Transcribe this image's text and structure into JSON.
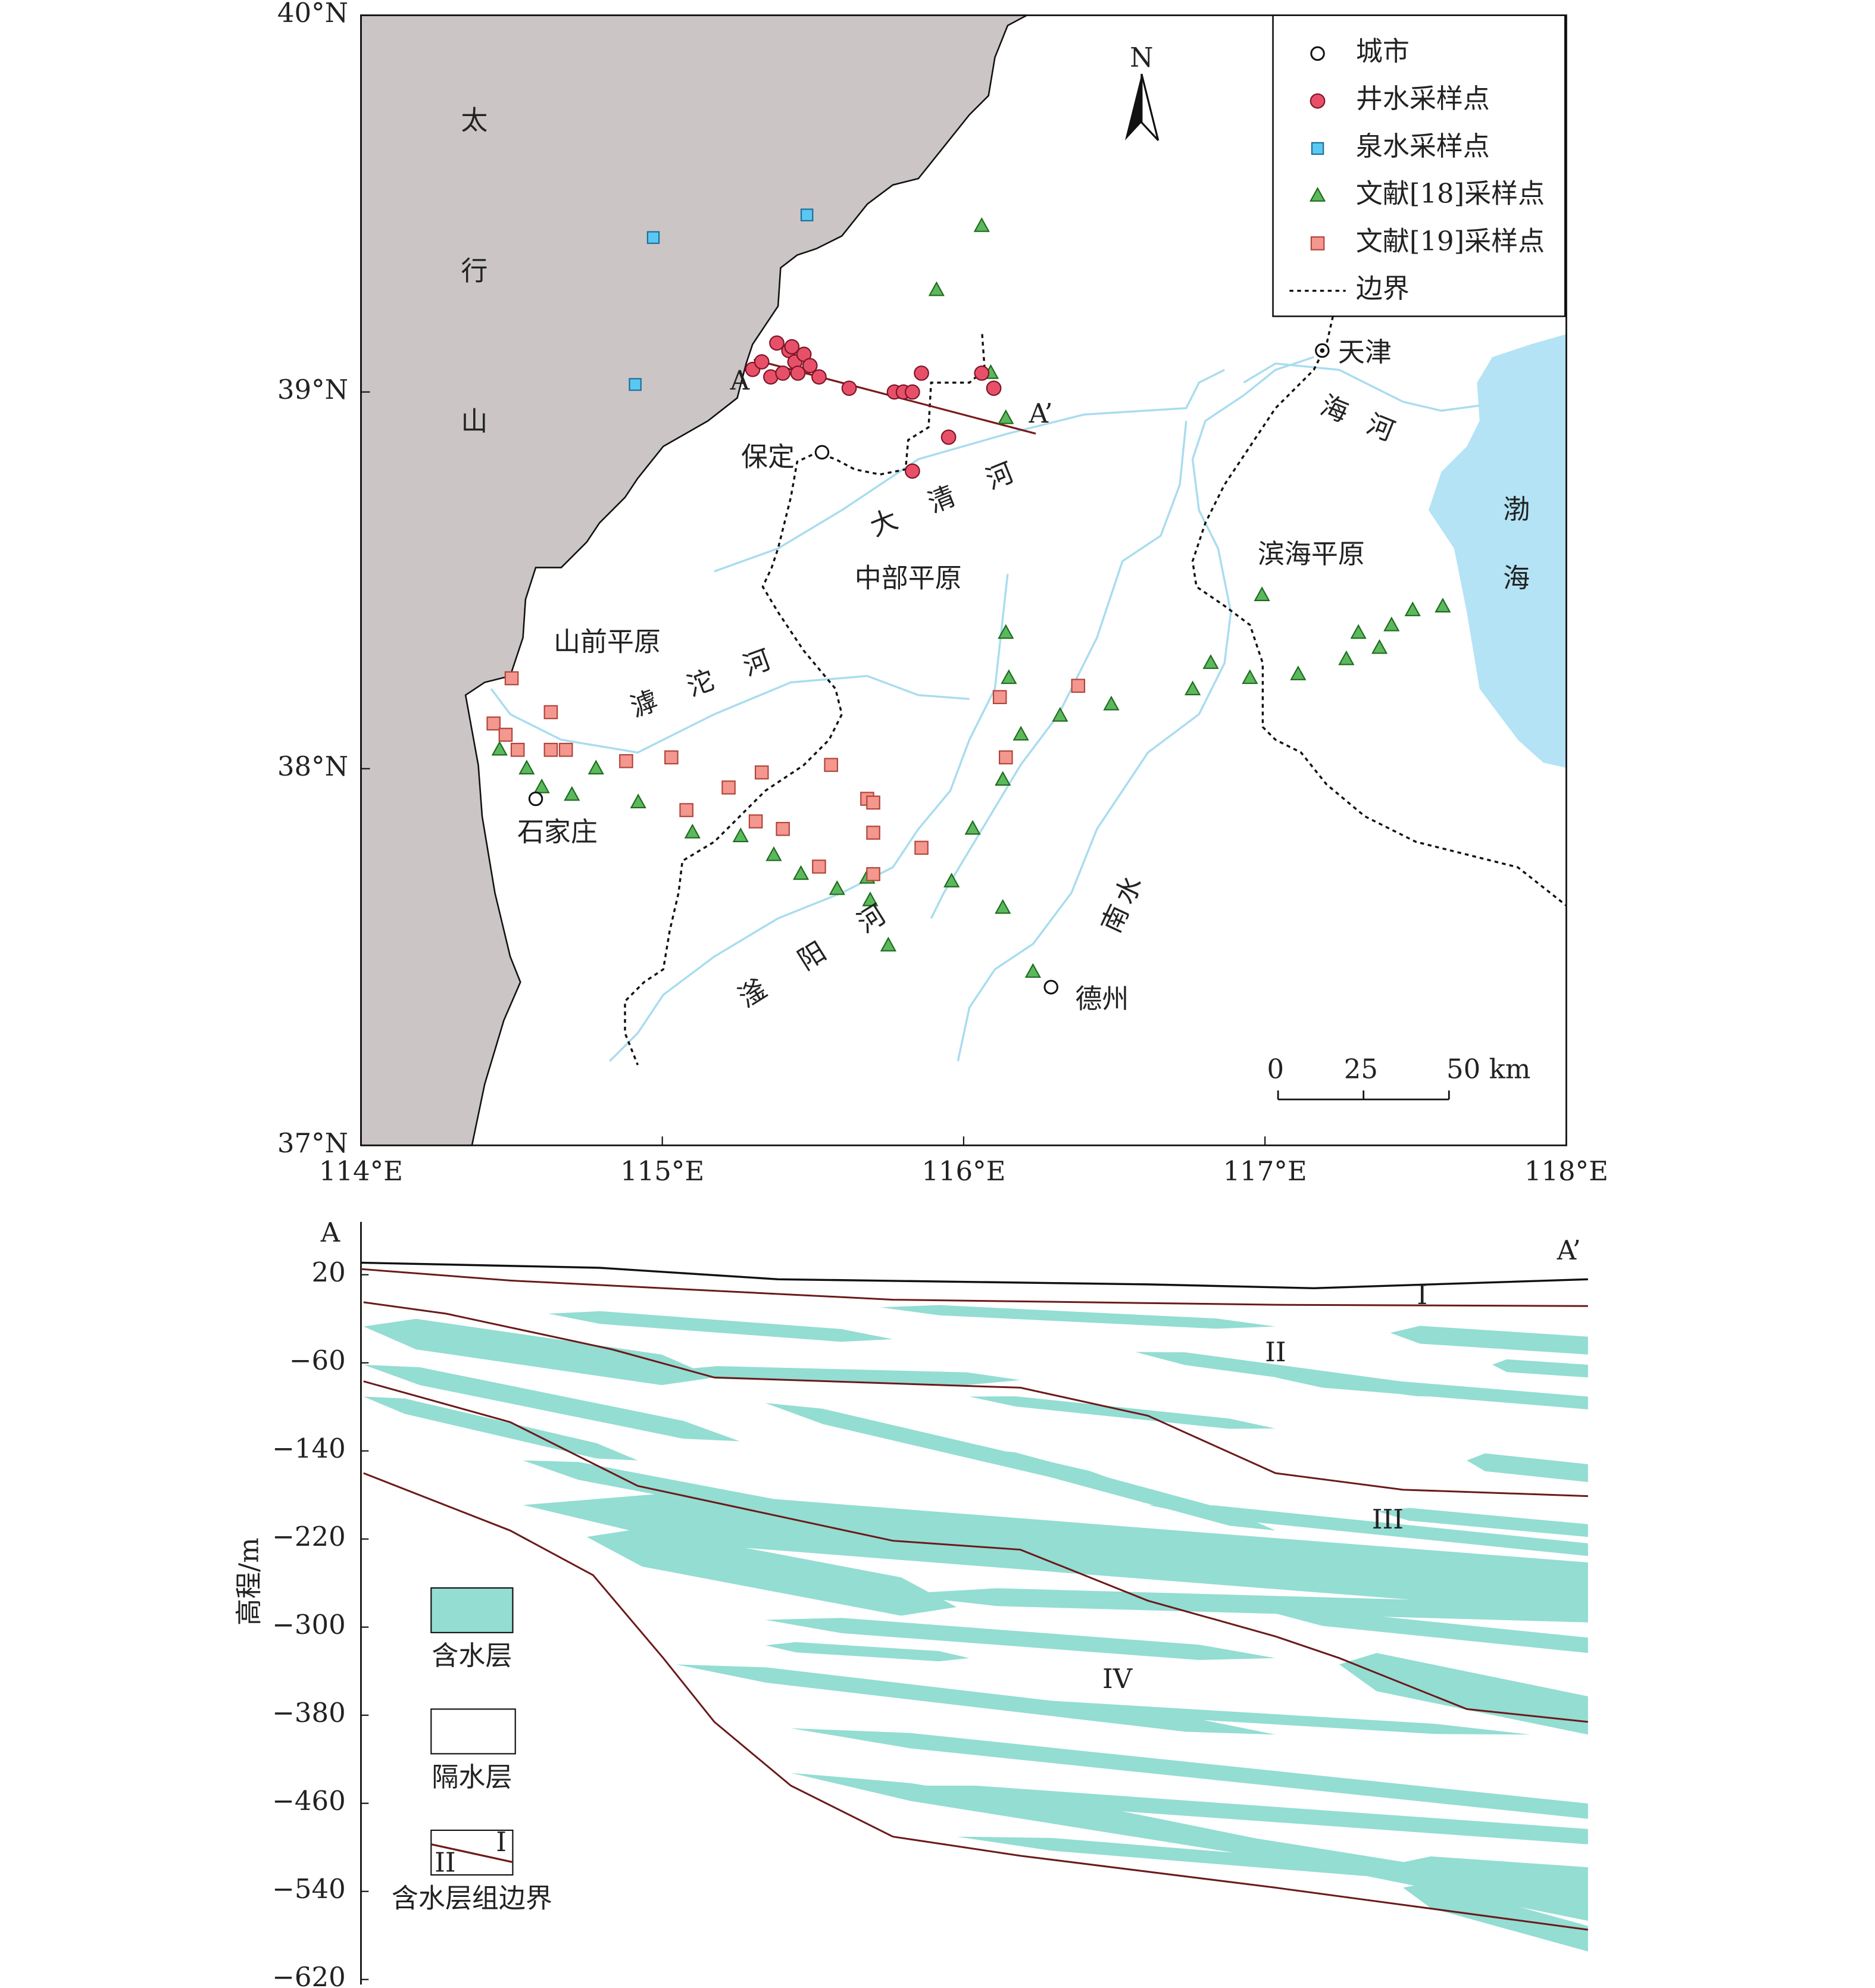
{
  "map": {
    "xlim": [
      114,
      118
    ],
    "ylim": [
      37,
      40
    ],
    "xticks": [
      {
        "value": 114,
        "label": "114°E"
      },
      {
        "value": 115,
        "label": "115°E"
      },
      {
        "value": 116,
        "label": "116°E"
      },
      {
        "value": 117,
        "label": "117°E"
      },
      {
        "value": 118,
        "label": "118°E"
      }
    ],
    "yticks": [
      {
        "value": 37,
        "label": "37°N"
      },
      {
        "value": 38,
        "label": "38°N"
      },
      {
        "value": 39,
        "label": "39°N"
      },
      {
        "value": 40,
        "label": "40°N"
      }
    ],
    "north": "N",
    "legend": [
      "城市",
      "井水采样点",
      "泉水采样点",
      "文献[18]采样点",
      "文献[19]采样点",
      "边界"
    ],
    "cities": [
      {
        "name": "保定",
        "lon": 115.53,
        "lat": 38.84
      },
      {
        "name": "石家庄",
        "lon": 114.58,
        "lat": 37.92
      },
      {
        "name": "德州",
        "lon": 116.29,
        "lat": 37.42
      },
      {
        "name": "天津",
        "lon": 117.19,
        "lat": 39.11
      }
    ],
    "wells": {
      "color": "#e8506a",
      "points": [
        [
          115.3,
          39.06
        ],
        [
          115.33,
          39.08
        ],
        [
          115.36,
          39.04
        ],
        [
          115.38,
          39.13
        ],
        [
          115.4,
          39.05
        ],
        [
          115.42,
          39.11
        ],
        [
          115.43,
          39.12
        ],
        [
          115.44,
          39.08
        ],
        [
          115.45,
          39.05
        ],
        [
          115.47,
          39.1
        ],
        [
          115.49,
          39.07
        ],
        [
          115.52,
          39.04
        ],
        [
          115.62,
          39.01
        ],
        [
          115.77,
          39.0
        ],
        [
          115.8,
          39.0
        ],
        [
          115.83,
          39.0
        ],
        [
          115.86,
          39.05
        ],
        [
          116.06,
          39.05
        ],
        [
          116.1,
          39.01
        ],
        [
          115.95,
          38.88
        ],
        [
          115.83,
          38.79
        ]
      ]
    },
    "springs": {
      "color": "#5bc8f2",
      "points": [
        [
          114.97,
          39.41
        ],
        [
          115.48,
          39.47
        ],
        [
          114.91,
          39.02
        ]
      ]
    },
    "ref18": {
      "color": "#5cb85c",
      "points": [
        [
          116.06,
          39.44
        ],
        [
          115.91,
          39.27
        ],
        [
          116.09,
          39.05
        ],
        [
          116.14,
          38.93
        ],
        [
          116.14,
          38.36
        ],
        [
          116.15,
          38.24
        ],
        [
          116.19,
          38.09
        ],
        [
          116.13,
          37.97
        ],
        [
          116.32,
          38.14
        ],
        [
          116.49,
          38.17
        ],
        [
          116.82,
          38.28
        ],
        [
          116.76,
          38.21
        ],
        [
          116.95,
          38.24
        ],
        [
          116.99,
          38.46
        ],
        [
          117.11,
          38.25
        ],
        [
          117.27,
          38.29
        ],
        [
          117.31,
          38.36
        ],
        [
          117.38,
          38.32
        ],
        [
          117.42,
          38.38
        ],
        [
          117.49,
          38.42
        ],
        [
          117.59,
          38.43
        ],
        [
          114.46,
          38.05
        ],
        [
          114.55,
          38.0
        ],
        [
          114.6,
          37.95
        ],
        [
          114.7,
          37.93
        ],
        [
          114.78,
          38.0
        ],
        [
          114.92,
          37.91
        ],
        [
          115.1,
          37.83
        ],
        [
          115.26,
          37.82
        ],
        [
          115.37,
          37.77
        ],
        [
          115.46,
          37.72
        ],
        [
          115.58,
          37.68
        ],
        [
          115.68,
          37.71
        ],
        [
          115.69,
          37.65
        ],
        [
          115.75,
          37.53
        ],
        [
          115.96,
          37.7
        ],
        [
          116.03,
          37.84
        ],
        [
          116.13,
          37.63
        ],
        [
          116.23,
          37.46
        ]
      ]
    },
    "ref19": {
      "color": "#f4978e",
      "points": [
        [
          114.5,
          38.24
        ],
        [
          114.44,
          38.12
        ],
        [
          114.48,
          38.09
        ],
        [
          114.52,
          38.05
        ],
        [
          114.63,
          38.15
        ],
        [
          114.63,
          38.05
        ],
        [
          114.68,
          38.05
        ],
        [
          114.88,
          38.02
        ],
        [
          115.03,
          38.03
        ],
        [
          115.08,
          37.89
        ],
        [
          115.22,
          37.95
        ],
        [
          115.33,
          37.99
        ],
        [
          115.31,
          37.86
        ],
        [
          115.4,
          37.84
        ],
        [
          115.52,
          37.74
        ],
        [
          115.56,
          38.01
        ],
        [
          115.68,
          37.92
        ],
        [
          115.7,
          37.91
        ],
        [
          115.7,
          37.83
        ],
        [
          115.7,
          37.72
        ],
        [
          115.86,
          37.79
        ],
        [
          116.12,
          38.19
        ],
        [
          116.14,
          38.03
        ],
        [
          116.38,
          38.22
        ]
      ]
    },
    "section_line": [
      "A",
      "A’"
    ],
    "labels": [
      "太行山",
      "大清河",
      "滹沱河",
      "滏阳河",
      "南水",
      "海河",
      "渤海",
      "中部平原",
      "滨海平原",
      "山前平原"
    ],
    "scale_bar": {
      "ticks": [
        0,
        25,
        {
          "value": 50,
          "label": "50 km"
        }
      ]
    }
  },
  "section": {
    "ylabel": "高程/m",
    "ylim": [
      -620,
      68
    ],
    "yticks": [
      20,
      {
        "value": -60,
        "label": "−60"
      },
      {
        "value": -140,
        "label": "−140"
      },
      {
        "value": -220,
        "label": "−220"
      },
      {
        "value": -300,
        "label": "−300"
      },
      {
        "value": -380,
        "label": "−380"
      },
      {
        "value": -460,
        "label": "−460"
      },
      {
        "value": -540,
        "label": "−540"
      },
      {
        "value": -620,
        "label": "−620"
      }
    ],
    "ends": [
      "A",
      "A’"
    ],
    "units": [
      "I",
      "II",
      "III",
      "IV"
    ],
    "legend": [
      "含水层",
      "隔水层",
      "含水层组边界"
    ],
    "legend_units": [
      "I",
      "II"
    ]
  }
}
